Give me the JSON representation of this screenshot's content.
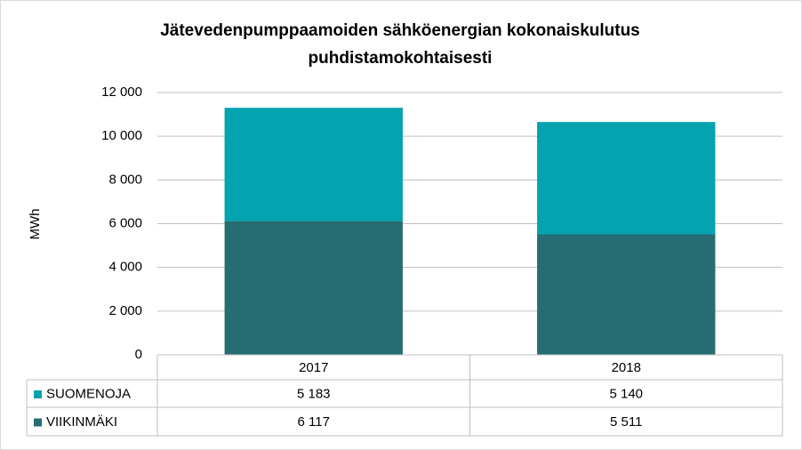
{
  "chart_data": {
    "type": "stacked-bar",
    "title": [
      "Jätevedenpumppaamoiden sähköenergian kokonaiskulutus",
      "puhdistamokohtaisesti"
    ],
    "y_label": "MWh",
    "categories": [
      "2017",
      "2018"
    ],
    "series": [
      {
        "name": "SUOMENOJA",
        "color": "#05a2b0",
        "values": [
          5183,
          5140
        ],
        "value_labels": [
          "5 183",
          "5 140"
        ]
      },
      {
        "name": "VIIKINMÄKI",
        "color": "#256d73",
        "values": [
          6117,
          5511
        ],
        "value_labels": [
          "6 117",
          "5 511"
        ]
      }
    ],
    "ylim": [
      0,
      12000
    ],
    "yticks": [
      0,
      {
        "value": 2000,
        "label": "2 000"
      },
      {
        "value": 4000,
        "label": "4 000"
      },
      {
        "value": 6000,
        "label": "6 000"
      },
      {
        "value": 8000,
        "label": "8 000"
      },
      {
        "value": 10000,
        "label": "10 000"
      },
      {
        "value": 12000,
        "label": "12 000"
      }
    ],
    "grid": true
  }
}
